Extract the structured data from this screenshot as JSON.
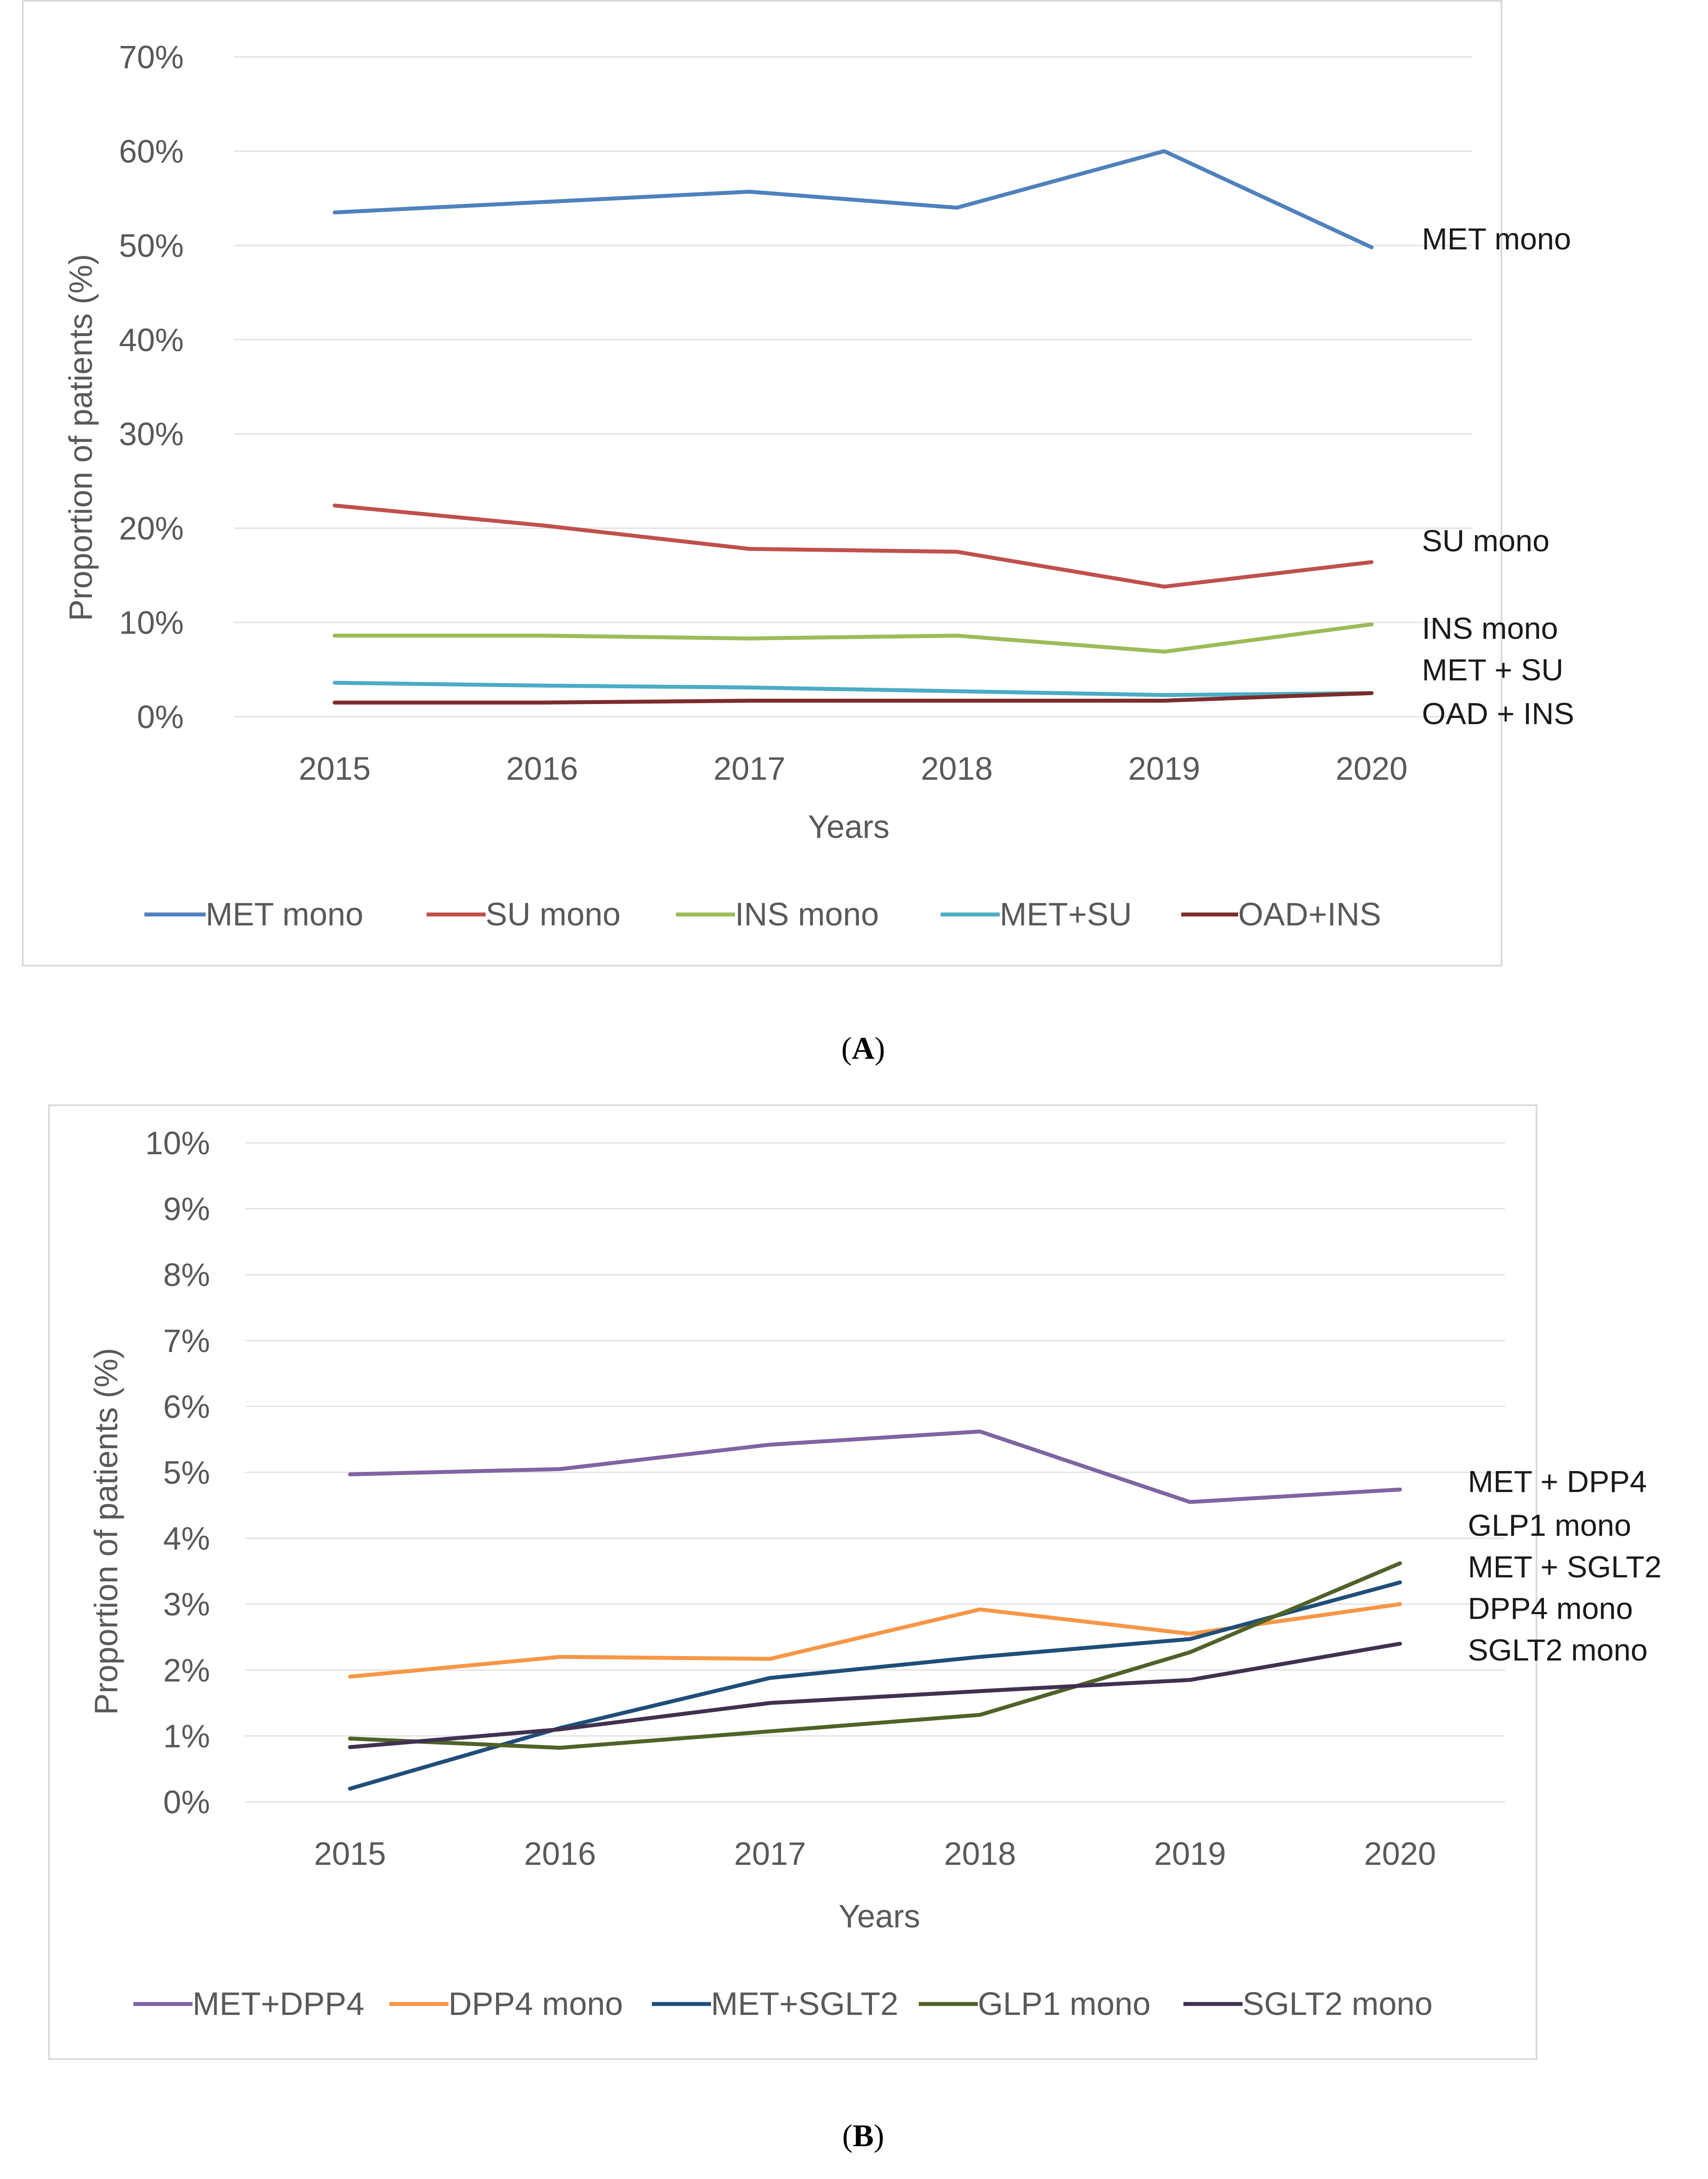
{
  "chart_data": [
    {
      "panel": "A",
      "panel_label": "A",
      "type": "line",
      "x": [
        "2015",
        "2016",
        "2017",
        "2018",
        "2019",
        "2020"
      ],
      "xlabel": "Years",
      "ylabel": "Proportion of patients (%)",
      "ylim": [
        0,
        70
      ],
      "yticks": [
        "0%",
        "10%",
        "20%",
        "30%",
        "40%",
        "50%",
        "60%",
        "70%"
      ],
      "grid": true,
      "legend_position": "bottom",
      "series": [
        {
          "name": "MET mono",
          "legend": "MET mono",
          "label": "MET mono",
          "color": "#4f81bd",
          "values": [
            53.5,
            54.6,
            55.7,
            54.0,
            60.0,
            49.8
          ]
        },
        {
          "name": "SU mono",
          "legend": "SU mono",
          "label": "SU mono",
          "color": "#c0504d",
          "values": [
            22.4,
            20.3,
            17.8,
            17.5,
            13.8,
            16.4
          ]
        },
        {
          "name": "INS mono",
          "legend": "INS mono",
          "label": "INS mono",
          "color": "#9bbb59",
          "values": [
            8.6,
            8.6,
            8.3,
            8.6,
            6.9,
            9.8
          ]
        },
        {
          "name": "MET+SU",
          "legend": "MET+SU",
          "label": "MET + SU",
          "color": "#4bacc6",
          "values": [
            3.6,
            3.3,
            3.1,
            2.7,
            2.3,
            2.5
          ]
        },
        {
          "name": "OAD+INS",
          "legend": "OAD+INS",
          "label": "OAD + INS",
          "color": "#7b2c2c",
          "values": [
            1.5,
            1.5,
            1.7,
            1.7,
            1.7,
            2.5
          ]
        }
      ]
    },
    {
      "panel": "B",
      "panel_label": "B",
      "type": "line",
      "x": [
        "2015",
        "2016",
        "2017",
        "2018",
        "2019",
        "2020"
      ],
      "xlabel": "Years",
      "ylabel": "Proportion of patients (%)",
      "ylim": [
        0,
        10
      ],
      "yticks": [
        "0%",
        "1%",
        "2%",
        "3%",
        "4%",
        "5%",
        "6%",
        "7%",
        "8%",
        "9%",
        "10%"
      ],
      "grid": true,
      "legend_position": "bottom",
      "series": [
        {
          "name": "MET+DPP4",
          "legend": "MET+DPP4",
          "color": "#8064a2",
          "values": [
            4.97,
            5.05,
            5.42,
            5.62,
            4.55,
            4.74
          ]
        },
        {
          "name": "DPP4 mono",
          "legend": "DPP4 mono",
          "color": "#f79646",
          "values": [
            1.9,
            2.2,
            2.17,
            2.92,
            2.55,
            3.0
          ]
        },
        {
          "name": "MET+SGLT2",
          "legend": "MET+SGLT2",
          "color": "#1f4e79",
          "values": [
            0.2,
            1.12,
            1.88,
            2.2,
            2.47,
            3.33
          ]
        },
        {
          "name": "GLP1 mono",
          "legend": "GLP1 mono",
          "color": "#4f6228",
          "values": [
            0.96,
            0.82,
            1.07,
            1.32,
            2.27,
            3.62
          ]
        },
        {
          "name": "SGLT2 mono",
          "legend": "SGLT2 mono",
          "color": "#403151",
          "values": [
            0.83,
            1.1,
            1.5,
            1.68,
            1.85,
            2.4
          ]
        }
      ],
      "right_labels": [
        "MET + DPP4",
        "GLP1 mono",
        "MET + SGLT2",
        "DPP4 mono",
        "SGLT2 mono"
      ]
    }
  ]
}
